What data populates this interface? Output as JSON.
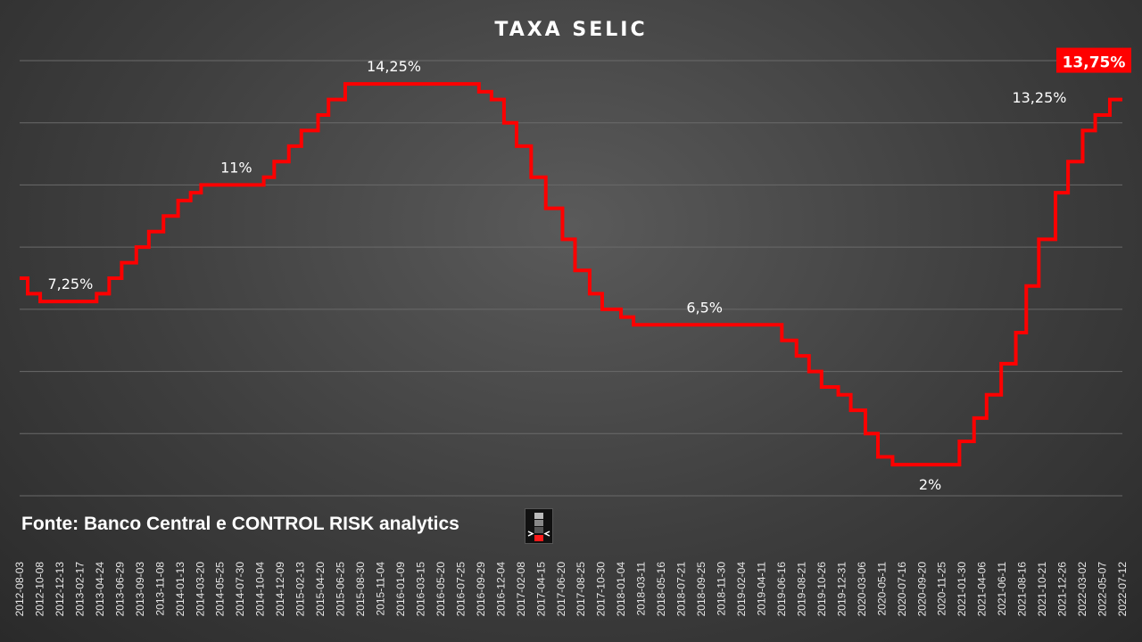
{
  "chart_data": {
    "type": "line",
    "title": "TAXA SELIC",
    "line_style": "step",
    "series_color": "#ff0000",
    "highlight_color": "#ff0000",
    "grid": "horizontal",
    "ylim": [
      1.0,
      15.0
    ],
    "x_ticks": [
      "2012-08-03",
      "2012-10-08",
      "2012-12-13",
      "2013-02-17",
      "2013-04-24",
      "2013-06-29",
      "2013-09-03",
      "2013-11-08",
      "2014-01-13",
      "2014-03-20",
      "2014-05-25",
      "2014-07-30",
      "2014-10-04",
      "2014-12-09",
      "2015-02-13",
      "2015-04-20",
      "2015-06-25",
      "2015-08-30",
      "2015-11-04",
      "2016-01-09",
      "2016-03-15",
      "2016-05-20",
      "2016-07-25",
      "2016-09-29",
      "2016-12-04",
      "2017-02-08",
      "2017-04-15",
      "2017-06-20",
      "2017-08-25",
      "2017-10-30",
      "2018-01-04",
      "2018-03-11",
      "2018-05-16",
      "2018-07-21",
      "2018-09-25",
      "2018-11-30",
      "2019-02-04",
      "2019-04-11",
      "2019-06-16",
      "2019-08-21",
      "2019-10-26",
      "2019-12-31",
      "2020-03-06",
      "2020-05-11",
      "2020-07-16",
      "2020-09-20",
      "2020-11-25",
      "2021-01-30",
      "2021-04-06",
      "2021-06-11",
      "2021-08-16",
      "2021-10-21",
      "2021-12-26",
      "2022-03-02",
      "2022-05-07",
      "2022-07-12"
    ],
    "points": [
      [
        "2012-08-03",
        8.0
      ],
      [
        "2012-08-30",
        7.5
      ],
      [
        "2012-10-11",
        7.25
      ],
      [
        "2013-04-18",
        7.5
      ],
      [
        "2013-05-30",
        8.0
      ],
      [
        "2013-07-11",
        8.5
      ],
      [
        "2013-08-29",
        9.0
      ],
      [
        "2013-10-10",
        9.5
      ],
      [
        "2013-11-28",
        10.0
      ],
      [
        "2014-01-16",
        10.5
      ],
      [
        "2014-02-27",
        10.75
      ],
      [
        "2014-04-03",
        11.0
      ],
      [
        "2014-10-30",
        11.25
      ],
      [
        "2014-12-04",
        11.75
      ],
      [
        "2015-01-22",
        12.25
      ],
      [
        "2015-03-05",
        12.75
      ],
      [
        "2015-04-30",
        13.25
      ],
      [
        "2015-06-04",
        13.75
      ],
      [
        "2015-07-30",
        14.25
      ],
      [
        "2016-10-20",
        14.0
      ],
      [
        "2016-12-01",
        13.75
      ],
      [
        "2017-01-12",
        13.0
      ],
      [
        "2017-02-23",
        12.25
      ],
      [
        "2017-04-13",
        11.25
      ],
      [
        "2017-06-01",
        10.25
      ],
      [
        "2017-07-27",
        9.25
      ],
      [
        "2017-09-07",
        8.25
      ],
      [
        "2017-10-26",
        7.5
      ],
      [
        "2017-12-07",
        7.0
      ],
      [
        "2018-02-08",
        6.75
      ],
      [
        "2018-03-22",
        6.5
      ],
      [
        "2019-08-01",
        6.0
      ],
      [
        "2019-09-19",
        5.5
      ],
      [
        "2019-10-31",
        5.0
      ],
      [
        "2019-12-12",
        4.5
      ],
      [
        "2020-02-06",
        4.25
      ],
      [
        "2020-03-19",
        3.75
      ],
      [
        "2020-05-07",
        3.0
      ],
      [
        "2020-06-18",
        2.25
      ],
      [
        "2020-08-06",
        2.0
      ],
      [
        "2021-03-18",
        2.75
      ],
      [
        "2021-05-06",
        3.5
      ],
      [
        "2021-06-17",
        4.25
      ],
      [
        "2021-08-05",
        5.25
      ],
      [
        "2021-09-23",
        6.25
      ],
      [
        "2021-10-28",
        7.75
      ],
      [
        "2021-12-09",
        9.25
      ],
      [
        "2022-02-03",
        10.75
      ],
      [
        "2022-03-17",
        11.75
      ],
      [
        "2022-05-05",
        12.75
      ],
      [
        "2022-06-16",
        13.25
      ],
      [
        "2022-08-04",
        13.75
      ],
      [
        "2022-09-15",
        13.75
      ]
    ],
    "annotations": [
      {
        "label": "7,25%",
        "date": "2013-01-20",
        "value": 7.25,
        "pos": "above"
      },
      {
        "label": "11%",
        "date": "2014-07-30",
        "value": 11.0,
        "pos": "above"
      },
      {
        "label": "14,25%",
        "date": "2016-01-09",
        "value": 14.25,
        "pos": "above"
      },
      {
        "label": "6,5%",
        "date": "2018-11-15",
        "value": 6.5,
        "pos": "above"
      },
      {
        "label": "2%",
        "date": "2020-12-10",
        "value": 2.0,
        "pos": "below"
      },
      {
        "label": "13,25%",
        "date": "2022-03-30",
        "value": 13.25,
        "pos": "above-left"
      }
    ],
    "highlight": {
      "label": "13,75%",
      "value": 13.75
    }
  },
  "footer": {
    "source": "Fonte: Banco Central e CONTROL RISK analytics",
    "logo_icon": "control-risk-logo-icon"
  }
}
